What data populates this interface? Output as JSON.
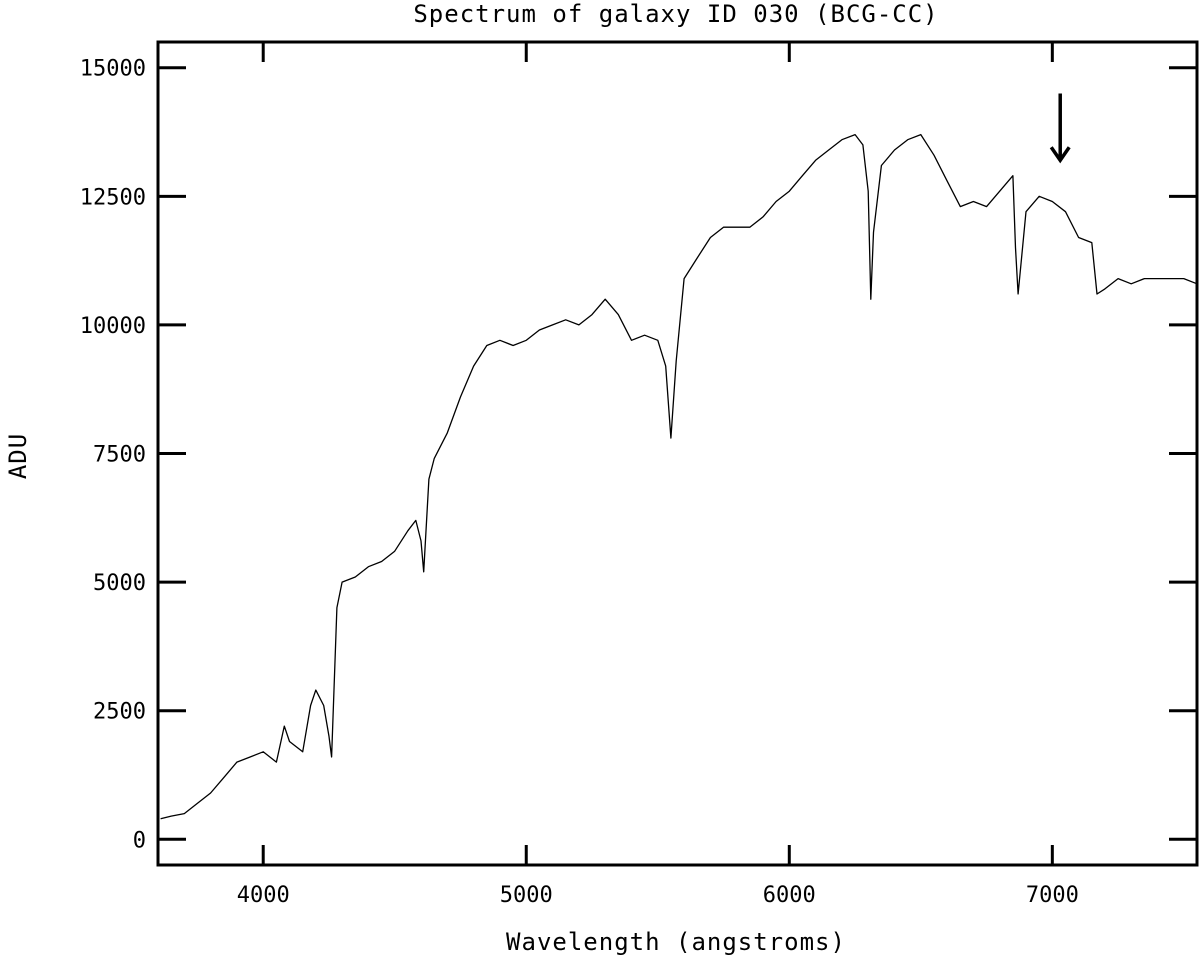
{
  "chart_data": {
    "type": "line",
    "title": "Spectrum of galaxy ID 030 (BCG-CC)",
    "xlabel": "Wavelength (angstroms)",
    "ylabel": "ADU",
    "xlim": [
      3600,
      7550
    ],
    "ylim": [
      -500,
      15500
    ],
    "x_ticks": [
      4000,
      5000,
      6000,
      7000
    ],
    "y_ticks": [
      0,
      2500,
      5000,
      7500,
      10000,
      12500,
      15000
    ],
    "x_tick_labels": [
      "4000",
      "5000",
      "6000",
      "7000"
    ],
    "y_tick_labels": [
      "0",
      "2500",
      "5000",
      "7500",
      "10000",
      "12500",
      "15000"
    ],
    "grid": false,
    "line_color": "#000000",
    "annotation": {
      "type": "arrow",
      "x": 7030,
      "y_from": 14500,
      "y_to": 13200
    },
    "series": [
      {
        "x": [
          3610,
          3650,
          3700,
          3750,
          3800,
          3850,
          3900,
          3950,
          4000,
          4050,
          4080,
          4100,
          4150,
          4180,
          4200,
          4230,
          4250,
          4260,
          4280,
          4300,
          4350,
          4400,
          4450,
          4500,
          4550,
          4580,
          4600,
          4610,
          4630,
          4650,
          4700,
          4750,
          4800,
          4850,
          4900,
          4950,
          5000,
          5050,
          5100,
          5150,
          5200,
          5250,
          5300,
          5350,
          5400,
          5450,
          5500,
          5530,
          5550,
          5570,
          5600,
          5650,
          5700,
          5750,
          5800,
          5850,
          5900,
          5950,
          6000,
          6050,
          6100,
          6150,
          6200,
          6250,
          6280,
          6300,
          6310,
          6320,
          6350,
          6400,
          6450,
          6500,
          6550,
          6600,
          6650,
          6700,
          6750,
          6800,
          6850,
          6860,
          6870,
          6900,
          6950,
          7000,
          7050,
          7100,
          7150,
          7170,
          7200,
          7250,
          7300,
          7350,
          7400,
          7450,
          7500,
          7550
        ],
        "y": [
          400,
          450,
          500,
          700,
          900,
          1200,
          1500,
          1600,
          1700,
          1500,
          2200,
          1900,
          1700,
          2600,
          2900,
          2600,
          2000,
          1600,
          4500,
          5000,
          5100,
          5300,
          5400,
          5600,
          6000,
          6200,
          5800,
          5200,
          7000,
          7400,
          7900,
          8600,
          9200,
          9600,
          9700,
          9600,
          9700,
          9900,
          10000,
          10100,
          10000,
          10200,
          10500,
          10200,
          9700,
          9800,
          9700,
          9200,
          7800,
          9300,
          10900,
          11300,
          11700,
          11900,
          11900,
          11900,
          12100,
          12400,
          12600,
          12900,
          13200,
          13400,
          13600,
          13700,
          13500,
          12600,
          10500,
          11800,
          13100,
          13400,
          13600,
          13700,
          13300,
          12800,
          12300,
          12400,
          12300,
          12600,
          12900,
          11500,
          10600,
          12200,
          12500,
          12400,
          12200,
          11700,
          11600,
          10600,
          10700,
          10900,
          10800,
          10900,
          10900,
          10900,
          10900,
          10800
        ]
      }
    ]
  }
}
